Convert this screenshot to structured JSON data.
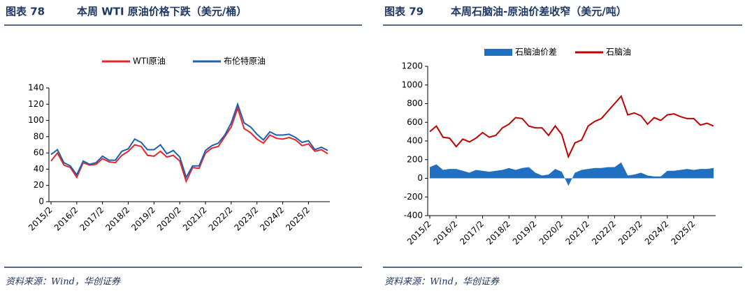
{
  "chart_data": [
    {
      "type": "line",
      "figure_label": "图表 78",
      "title": "本周 WTI 原油价格下跌（美元/桶）",
      "source": "资料来源：Wind，华创证券",
      "x": [
        "2015/2",
        "2015/5",
        "2015/8",
        "2015/11",
        "2016/2",
        "2016/5",
        "2016/8",
        "2016/11",
        "2017/2",
        "2017/5",
        "2017/8",
        "2017/11",
        "2018/2",
        "2018/5",
        "2018/8",
        "2018/11",
        "2019/2",
        "2019/5",
        "2019/8",
        "2019/11",
        "2020/2",
        "2020/5",
        "2020/8",
        "2020/11",
        "2021/2",
        "2021/5",
        "2021/8",
        "2021/11",
        "2022/2",
        "2022/5",
        "2022/8",
        "2022/11",
        "2023/2",
        "2023/5",
        "2023/8",
        "2023/11",
        "2024/2",
        "2024/5",
        "2024/8",
        "2024/11",
        "2025/2",
        "2025/5",
        "2025/8",
        "2025/11"
      ],
      "xticks": [
        "2015/2",
        "2016/2",
        "2017/2",
        "2018/2",
        "2019/2",
        "2020/2",
        "2021/2",
        "2022/2",
        "2023/2",
        "2024/2",
        "2025/2"
      ],
      "ylim": [
        0,
        140
      ],
      "yticks": [
        0,
        20,
        40,
        60,
        80,
        100,
        120,
        140
      ],
      "series": [
        {
          "name": "WTI原油",
          "color": "#e8262b",
          "values": [
            50,
            60,
            45,
            42,
            30,
            48,
            45,
            46,
            53,
            49,
            48,
            57,
            62,
            70,
            68,
            57,
            56,
            62,
            55,
            57,
            50,
            25,
            42,
            41,
            60,
            66,
            68,
            80,
            92,
            115,
            90,
            85,
            77,
            72,
            82,
            78,
            77,
            79,
            76,
            69,
            71,
            62,
            64,
            59
          ]
        },
        {
          "name": "布伦特原油",
          "color": "#1f5fb0",
          "values": [
            58,
            64,
            48,
            44,
            33,
            50,
            46,
            48,
            56,
            51,
            51,
            62,
            65,
            77,
            73,
            64,
            64,
            70,
            59,
            63,
            55,
            30,
            44,
            44,
            63,
            69,
            72,
            82,
            97,
            120,
            97,
            92,
            83,
            76,
            86,
            82,
            82,
            83,
            79,
            73,
            75,
            64,
            67,
            63
          ]
        }
      ]
    },
    {
      "type": "line",
      "figure_label": "图表 79",
      "title": "本周石脑油-原油价差收窄（美元/吨）",
      "source": "资料来源：Wind，华创证券",
      "x": [
        "2015/2",
        "2015/5",
        "2015/8",
        "2015/11",
        "2016/2",
        "2016/5",
        "2016/8",
        "2016/11",
        "2017/2",
        "2017/5",
        "2017/8",
        "2017/11",
        "2018/2",
        "2018/5",
        "2018/8",
        "2018/11",
        "2019/2",
        "2019/5",
        "2019/8",
        "2019/11",
        "2020/2",
        "2020/5",
        "2020/8",
        "2020/11",
        "2021/2",
        "2021/5",
        "2021/8",
        "2021/11",
        "2022/2",
        "2022/5",
        "2022/8",
        "2022/11",
        "2023/2",
        "2023/5",
        "2023/8",
        "2023/11",
        "2024/2",
        "2024/5",
        "2024/8",
        "2024/11",
        "2025/2",
        "2025/5",
        "2025/8",
        "2025/11"
      ],
      "xticks": [
        "2015/2",
        "2016/2",
        "2017/2",
        "2018/2",
        "2019/2",
        "2020/2",
        "2021/2",
        "2022/2",
        "2023/2",
        "2024/2",
        "2025/2"
      ],
      "ylim": [
        -400,
        1200
      ],
      "yticks": [
        -400,
        -200,
        0,
        200,
        400,
        600,
        800,
        1000,
        1200
      ],
      "series": [
        {
          "name": "石脑油价差",
          "color": "#1f70c1",
          "type": "area",
          "values": [
            120,
            150,
            90,
            100,
            100,
            80,
            60,
            90,
            80,
            70,
            80,
            90,
            110,
            90,
            110,
            120,
            60,
            30,
            40,
            100,
            70,
            -80,
            60,
            90,
            100,
            110,
            110,
            120,
            120,
            170,
            30,
            40,
            60,
            30,
            20,
            20,
            80,
            80,
            90,
            100,
            90,
            100,
            100,
            110
          ]
        },
        {
          "name": "石脑油",
          "color": "#c00000",
          "values": [
            500,
            560,
            440,
            430,
            340,
            420,
            390,
            430,
            490,
            440,
            460,
            540,
            580,
            650,
            640,
            560,
            540,
            540,
            460,
            560,
            470,
            230,
            380,
            410,
            560,
            610,
            640,
            720,
            800,
            880,
            680,
            700,
            670,
            580,
            650,
            620,
            680,
            690,
            660,
            640,
            640,
            570,
            590,
            560
          ]
        }
      ]
    }
  ]
}
